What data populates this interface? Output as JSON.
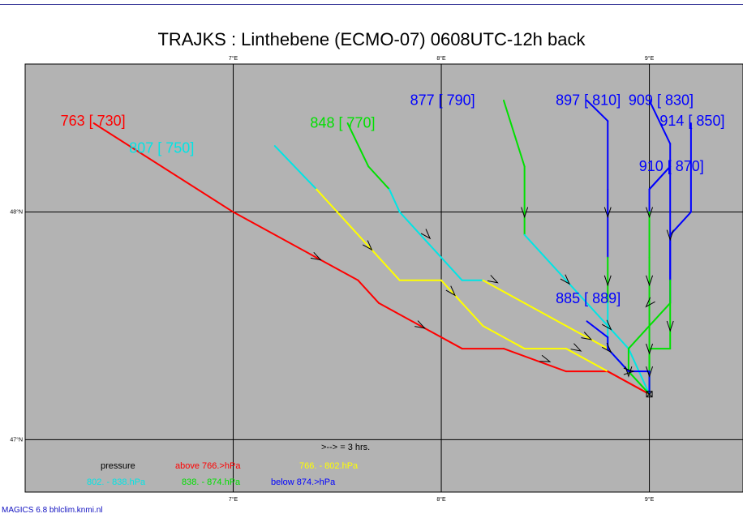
{
  "title": "TRAJKS : Linthebene (ECMO-07) 0608UTC-12h back",
  "footer": "MAGICS 6.8 bhlclim.knmi.nl",
  "colors": {
    "background": "#b3b3b3",
    "red": "#ff0000",
    "yellow": "#ffff00",
    "cyan": "#00e5e5",
    "green": "#00e000",
    "blue": "#0000ff",
    "grid": "#000000"
  },
  "chart_data": {
    "type": "line",
    "title": "TRAJKS : Linthebene (ECMO-07) 0608UTC-12h back",
    "xlim": [
      6.0,
      9.45
    ],
    "ylim": [
      46.77,
      48.65
    ],
    "grid": true,
    "x_ticks": [
      {
        "value": 7,
        "label": "7°E"
      },
      {
        "value": 8,
        "label": "8°E"
      },
      {
        "value": 9,
        "label": "9°E"
      }
    ],
    "y_ticks": [
      {
        "value": 48,
        "label": "48°N"
      },
      {
        "value": 47,
        "label": "47°N"
      }
    ],
    "origin": {
      "lon": 9.0,
      "lat": 47.2
    },
    "arrow_note": ">--> =  3 hrs.",
    "legend": {
      "title": "pressure",
      "entries": [
        {
          "text": "above  766.>hPa",
          "color": "red"
        },
        {
          "text": "766. -    802.hPa",
          "color": "yellow"
        },
        {
          "text": "802. -    838.hPa",
          "color": "cyan"
        },
        {
          "text": "838. -    874.hPa",
          "color": "green"
        },
        {
          "text": "below  874.>hPa",
          "color": "blue"
        }
      ]
    },
    "series": [
      {
        "label": "763 [ 730]",
        "label_pos": [
          6.17,
          48.38
        ],
        "label_color": "red",
        "points": [
          [
            6.33,
            48.39,
            "red"
          ],
          [
            7.0,
            48.0,
            "red"
          ],
          [
            7.4,
            47.8,
            "red"
          ],
          [
            7.6,
            47.7,
            "red"
          ],
          [
            7.7,
            47.6,
            "red"
          ],
          [
            7.9,
            47.5,
            "red"
          ],
          [
            8.1,
            47.4,
            "red"
          ],
          [
            8.3,
            47.4,
            "red"
          ],
          [
            8.6,
            47.3,
            "red"
          ],
          [
            8.8,
            47.3,
            "red"
          ],
          [
            9.0,
            47.2,
            "yellow"
          ]
        ],
        "arrows": [
          [
            7.4,
            47.8
          ],
          [
            7.9,
            47.5
          ],
          [
            8.5,
            47.35
          ]
        ]
      },
      {
        "label": "807 [ 750]",
        "label_pos": [
          6.5,
          48.26
        ],
        "label_color": "cyan",
        "points": [
          [
            7.2,
            48.29,
            "cyan"
          ],
          [
            7.4,
            48.1,
            "yellow"
          ],
          [
            7.7,
            47.8,
            "yellow"
          ],
          [
            7.8,
            47.7,
            "yellow"
          ],
          [
            8.0,
            47.7,
            "yellow"
          ],
          [
            8.1,
            47.6,
            "yellow"
          ],
          [
            8.2,
            47.5,
            "yellow"
          ],
          [
            8.4,
            47.4,
            "yellow"
          ],
          [
            8.6,
            47.4,
            "yellow"
          ],
          [
            8.8,
            47.3,
            "red"
          ],
          [
            9.0,
            47.2,
            "yellow"
          ]
        ],
        "arrows": [
          [
            7.65,
            47.85
          ],
          [
            8.05,
            47.65
          ],
          [
            8.65,
            47.4
          ]
        ]
      },
      {
        "label": "848 [ 770]",
        "label_pos": [
          7.37,
          48.37
        ],
        "label_color": "green",
        "points": [
          [
            7.55,
            48.39,
            "green"
          ],
          [
            7.65,
            48.2,
            "green"
          ],
          [
            7.75,
            48.1,
            "cyan"
          ],
          [
            7.8,
            48.0,
            "cyan"
          ],
          [
            7.9,
            47.9,
            "cyan"
          ],
          [
            8.0,
            47.8,
            "cyan"
          ],
          [
            8.1,
            47.7,
            "cyan"
          ],
          [
            8.2,
            47.7,
            "yellow"
          ],
          [
            8.4,
            47.6,
            "yellow"
          ],
          [
            8.6,
            47.5,
            "yellow"
          ],
          [
            8.8,
            47.4,
            "yellow"
          ],
          [
            9.0,
            47.2,
            "yellow"
          ]
        ],
        "arrows": [
          [
            7.93,
            47.9
          ],
          [
            8.25,
            47.7
          ],
          [
            8.7,
            47.45
          ]
        ]
      },
      {
        "label": "877 [ 790]",
        "label_pos": [
          7.85,
          48.47
        ],
        "label_color": "blue",
        "points": [
          [
            8.3,
            48.49,
            "green"
          ],
          [
            8.4,
            48.2,
            "green"
          ],
          [
            8.4,
            48.0,
            "green"
          ],
          [
            8.4,
            47.9,
            "cyan"
          ],
          [
            8.6,
            47.7,
            "cyan"
          ],
          [
            8.7,
            47.6,
            "cyan"
          ],
          [
            8.8,
            47.5,
            "cyan"
          ],
          [
            8.9,
            47.4,
            "cyan"
          ],
          [
            9.0,
            47.2,
            "cyan"
          ]
        ],
        "arrows": [
          [
            8.4,
            48.0
          ],
          [
            8.6,
            47.7
          ],
          [
            8.8,
            47.5
          ]
        ]
      },
      {
        "label": "897 [ 810]",
        "label_pos": [
          8.55,
          48.47
        ],
        "label_color": "blue",
        "points": [
          [
            8.7,
            48.49,
            "blue"
          ],
          [
            8.8,
            48.4,
            "blue"
          ],
          [
            8.8,
            48.1,
            "blue"
          ],
          [
            8.8,
            47.8,
            "green"
          ],
          [
            8.8,
            47.6,
            "cyan"
          ],
          [
            8.8,
            47.4,
            "cyan"
          ],
          [
            8.9,
            47.3,
            "cyan"
          ],
          [
            9.0,
            47.2,
            "cyan"
          ]
        ],
        "arrows": [
          [
            8.8,
            48.0
          ],
          [
            8.8,
            47.7
          ],
          [
            8.8,
            47.4
          ]
        ]
      },
      {
        "label": "909 [ 830]",
        "label_pos": [
          8.9,
          48.47
        ],
        "label_color": "blue",
        "points": [
          [
            9.0,
            48.49,
            "blue"
          ],
          [
            9.1,
            48.3,
            "blue"
          ],
          [
            9.1,
            47.9,
            "blue"
          ],
          [
            9.1,
            47.6,
            "green"
          ],
          [
            9.0,
            47.5,
            "green"
          ],
          [
            8.9,
            47.4,
            "green"
          ],
          [
            8.9,
            47.3,
            "green"
          ],
          [
            9.0,
            47.2,
            "green"
          ]
        ],
        "arrows": [
          [
            9.1,
            47.9
          ],
          [
            9.0,
            47.6
          ],
          [
            8.9,
            47.3
          ]
        ]
      },
      {
        "label": "914 [ 850]",
        "label_pos": [
          9.05,
          48.38
        ],
        "label_color": "blue",
        "points": [
          [
            9.2,
            48.39,
            "blue"
          ],
          [
            9.2,
            48.0,
            "blue"
          ],
          [
            9.1,
            47.9,
            "blue"
          ],
          [
            9.1,
            47.7,
            "green"
          ],
          [
            9.1,
            47.4,
            "green"
          ],
          [
            9.0,
            47.4,
            "green"
          ],
          [
            9.0,
            47.3,
            "green"
          ],
          [
            9.0,
            47.2,
            "green"
          ]
        ],
        "arrows": [
          [
            9.1,
            47.5
          ],
          [
            9.0,
            47.3
          ]
        ]
      },
      {
        "label": "910 [ 870]",
        "label_pos": [
          8.95,
          48.18
        ],
        "label_color": "blue",
        "points": [
          [
            9.0,
            48.1,
            "blue"
          ],
          [
            9.1,
            48.2,
            "blue"
          ],
          [
            9.0,
            48.1,
            "blue"
          ],
          [
            9.0,
            48.0,
            "green"
          ],
          [
            9.0,
            47.8,
            "green"
          ],
          [
            9.0,
            47.4,
            "green"
          ],
          [
            9.0,
            47.2,
            "green"
          ]
        ],
        "arrows": [
          [
            9.0,
            48.0
          ],
          [
            9.0,
            47.7
          ],
          [
            9.0,
            47.4
          ]
        ]
      },
      {
        "label": "885 [ 889]",
        "label_pos": [
          8.55,
          47.6
        ],
        "label_color": "blue",
        "points": [
          [
            8.7,
            47.52,
            "blue"
          ],
          [
            8.8,
            47.45,
            "blue"
          ],
          [
            8.8,
            47.4,
            "blue"
          ],
          [
            8.9,
            47.3,
            "blue"
          ],
          [
            9.0,
            47.3,
            "blue"
          ],
          [
            9.0,
            47.2,
            "blue"
          ]
        ],
        "arrows": [
          [
            8.9,
            47.3
          ]
        ]
      }
    ]
  }
}
